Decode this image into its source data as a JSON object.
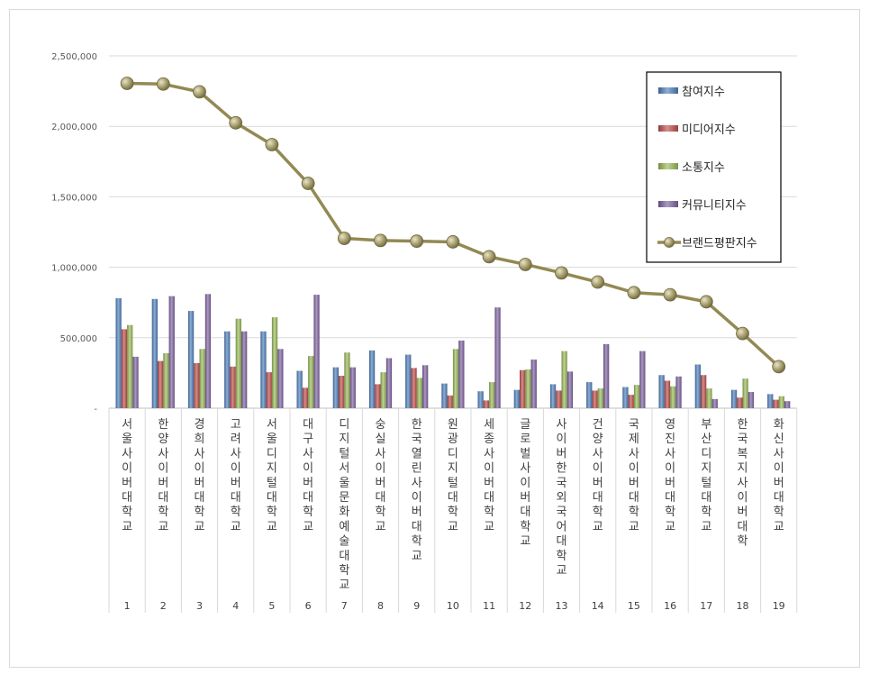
{
  "chart_data": {
    "type": "bar",
    "title": "",
    "xlabel": "",
    "ylabel": "",
    "ylim": [
      0,
      2500000
    ],
    "y_ticks": [
      "-",
      "500,000",
      "1,000,000",
      "1,500,000",
      "2,000,000",
      "2,500,000"
    ],
    "grid": true,
    "legend_position": "top-right",
    "categories": [
      {
        "rank": "1",
        "name": "서울사이버대학교"
      },
      {
        "rank": "2",
        "name": "한양사이버대학교"
      },
      {
        "rank": "3",
        "name": "경희사이버대학교"
      },
      {
        "rank": "4",
        "name": "고려사이버대학교"
      },
      {
        "rank": "5",
        "name": "서울디지털대학교"
      },
      {
        "rank": "6",
        "name": "대구사이버대학교"
      },
      {
        "rank": "7",
        "name": "디지털서울문화예술대학교"
      },
      {
        "rank": "8",
        "name": "숭실사이버대학교"
      },
      {
        "rank": "9",
        "name": "한국열린사이버대학교"
      },
      {
        "rank": "10",
        "name": "원광디지털대학교"
      },
      {
        "rank": "11",
        "name": "세종사이버대학교"
      },
      {
        "rank": "12",
        "name": "글로벌사이버대학교"
      },
      {
        "rank": "13",
        "name": "사이버한국외국어대학교"
      },
      {
        "rank": "14",
        "name": "건양사이버대학교"
      },
      {
        "rank": "15",
        "name": "국제사이버대학교"
      },
      {
        "rank": "16",
        "name": "영진사이버대학교"
      },
      {
        "rank": "17",
        "name": "부산디지털대학교"
      },
      {
        "rank": "18",
        "name": "한국복지사이버대학"
      },
      {
        "rank": "19",
        "name": "화신사이버대학교"
      }
    ],
    "series": [
      {
        "name": "참여지수",
        "kind": "bar",
        "color": "#4f81bd",
        "values": [
          780000,
          775000,
          690000,
          545000,
          545000,
          265000,
          290000,
          410000,
          380000,
          175000,
          120000,
          130000,
          170000,
          185000,
          150000,
          235000,
          310000,
          130000,
          100000
        ]
      },
      {
        "name": "미디어지수",
        "kind": "bar",
        "color": "#c0504d",
        "values": [
          560000,
          335000,
          320000,
          295000,
          255000,
          145000,
          230000,
          170000,
          285000,
          90000,
          55000,
          270000,
          125000,
          125000,
          95000,
          195000,
          235000,
          75000,
          60000
        ]
      },
      {
        "name": "소통지수",
        "kind": "bar",
        "color": "#9bbb59",
        "values": [
          590000,
          390000,
          420000,
          635000,
          645000,
          370000,
          395000,
          255000,
          215000,
          420000,
          185000,
          275000,
          405000,
          140000,
          165000,
          155000,
          140000,
          210000,
          85000
        ]
      },
      {
        "name": "커뮤니티지수",
        "kind": "bar",
        "color": "#8064a2",
        "values": [
          365000,
          795000,
          810000,
          545000,
          420000,
          805000,
          290000,
          355000,
          305000,
          480000,
          715000,
          345000,
          260000,
          455000,
          405000,
          225000,
          65000,
          115000,
          50000
        ]
      },
      {
        "name": "브랜드평판지수",
        "kind": "line",
        "color": "#938953",
        "values": [
          2305000,
          2300000,
          2245000,
          2025000,
          1870000,
          1595000,
          1205000,
          1190000,
          1185000,
          1180000,
          1075000,
          1020000,
          960000,
          895000,
          820000,
          805000,
          755000,
          530000,
          295000
        ]
      }
    ]
  }
}
